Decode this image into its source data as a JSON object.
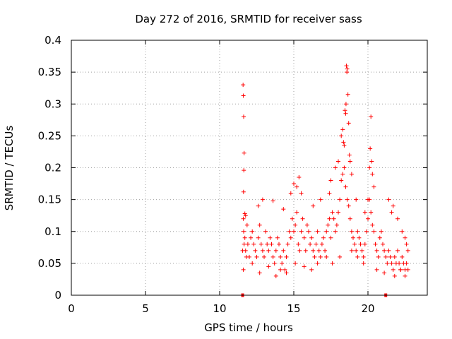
{
  "chart_data": {
    "type": "scatter",
    "title": "Day 272 of 2016, SRMTID for receiver sass",
    "xlabel": "GPS time / hours",
    "ylabel": "SRMTID / TECUs",
    "xlim": [
      0,
      24
    ],
    "ylim": [
      0,
      0.4
    ],
    "xticks": [
      0,
      5,
      10,
      15,
      20
    ],
    "xtick_labels": [
      "0",
      "5",
      "10",
      "15",
      "20"
    ],
    "yticks": [
      0,
      0.05,
      0.1,
      0.15,
      0.2,
      0.25,
      0.3,
      0.35,
      0.4
    ],
    "ytick_labels": [
      "0",
      "0.05",
      "0.1",
      "0.15",
      "0.2",
      "0.25",
      "0.3",
      "0.35",
      "0.4"
    ],
    "grid": true,
    "marker": "+",
    "series": [
      {
        "name": "SRMTID",
        "color": "#ff0000",
        "x": [
          11.55,
          11.6,
          11.62,
          11.65,
          11.7,
          11.75,
          11.8,
          11.85,
          11.9,
          12.0,
          12.1,
          12.2,
          12.3,
          12.4,
          12.5,
          12.6,
          12.7,
          12.8,
          12.9,
          13.0,
          13.1,
          13.2,
          13.3,
          13.4,
          13.5,
          13.6,
          13.7,
          13.8,
          13.9,
          14.0,
          14.1,
          14.2,
          14.3,
          14.4,
          14.5,
          14.6,
          14.7,
          14.8,
          14.9,
          15.0,
          15.1,
          15.2,
          15.3,
          15.4,
          15.5,
          15.6,
          15.7,
          15.8,
          15.9,
          16.0,
          16.1,
          16.2,
          16.3,
          16.4,
          16.5,
          16.6,
          16.7,
          16.8,
          16.9,
          17.0,
          17.1,
          17.2,
          17.3,
          17.4,
          17.5,
          17.6,
          17.7,
          17.8,
          17.9,
          18.0,
          18.1,
          18.2,
          18.3,
          18.4,
          18.5,
          18.6,
          18.7,
          18.8,
          18.9,
          19.0,
          19.1,
          19.2,
          19.3,
          19.4,
          19.5,
          19.6,
          19.7,
          19.8,
          19.9,
          20.0,
          20.1,
          20.2,
          20.3,
          20.4,
          20.5,
          20.6,
          20.7,
          20.8,
          20.9,
          21.0,
          21.1,
          21.2,
          21.3,
          21.4,
          21.5,
          21.6,
          21.7,
          21.8,
          21.9,
          22.0,
          22.1,
          22.2,
          22.3,
          22.4,
          22.5,
          22.6,
          22.7,
          11.58,
          11.6,
          11.62,
          11.65,
          11.63,
          11.61,
          11.7,
          11.75,
          12.6,
          12.9,
          13.6,
          14.3,
          14.8,
          15.0,
          15.2,
          15.35,
          15.5,
          16.3,
          16.8,
          17.4,
          17.5,
          17.8,
          18.0,
          18.2,
          18.3,
          18.35,
          18.4,
          18.45,
          18.5,
          18.52,
          18.55,
          18.58,
          18.6,
          18.65,
          18.7,
          18.75,
          18.8,
          18.9,
          19.2,
          19.8,
          20.0,
          20.1,
          20.15,
          20.2,
          20.25,
          20.3,
          20.4,
          21.4,
          21.6,
          21.7,
          22.0,
          22.3,
          22.5,
          22.6,
          22.7,
          11.6,
          12.2,
          12.7,
          13.3,
          13.8,
          14.1,
          14.5,
          15.1,
          15.7,
          16.2,
          16.6,
          17.2,
          17.6,
          18.1,
          18.9,
          19.3,
          19.7,
          20.6,
          21.1,
          21.8,
          22.2,
          22.5
        ],
        "y": [
          0.07,
          0.12,
          0.1,
          0.08,
          0.09,
          0.07,
          0.06,
          0.11,
          0.08,
          0.06,
          0.09,
          0.1,
          0.08,
          0.07,
          0.06,
          0.09,
          0.11,
          0.08,
          0.07,
          0.06,
          0.1,
          0.08,
          0.07,
          0.09,
          0.08,
          0.06,
          0.05,
          0.07,
          0.09,
          0.08,
          0.06,
          0.05,
          0.07,
          0.04,
          0.06,
          0.08,
          0.1,
          0.09,
          0.12,
          0.1,
          0.11,
          0.13,
          0.08,
          0.07,
          0.1,
          0.12,
          0.09,
          0.07,
          0.11,
          0.1,
          0.08,
          0.09,
          0.07,
          0.06,
          0.08,
          0.1,
          0.07,
          0.06,
          0.08,
          0.09,
          0.07,
          0.1,
          0.11,
          0.12,
          0.09,
          0.13,
          0.12,
          0.1,
          0.11,
          0.13,
          0.15,
          0.18,
          0.19,
          0.2,
          0.17,
          0.15,
          0.14,
          0.12,
          0.1,
          0.09,
          0.08,
          0.07,
          0.1,
          0.09,
          0.08,
          0.07,
          0.06,
          0.08,
          0.1,
          0.12,
          0.15,
          0.13,
          0.11,
          0.1,
          0.08,
          0.07,
          0.06,
          0.09,
          0.1,
          0.08,
          0.07,
          0.06,
          0.05,
          0.07,
          0.06,
          0.05,
          0.04,
          0.06,
          0.05,
          0.07,
          0.05,
          0.04,
          0.06,
          0.05,
          0.04,
          0.05,
          0.04,
          0.33,
          0.313,
          0.28,
          0.223,
          0.196,
          0.162,
          0.128,
          0.125,
          0.14,
          0.15,
          0.148,
          0.135,
          0.16,
          0.175,
          0.17,
          0.185,
          0.16,
          0.14,
          0.15,
          0.16,
          0.18,
          0.2,
          0.21,
          0.25,
          0.26,
          0.24,
          0.235,
          0.29,
          0.285,
          0.3,
          0.36,
          0.35,
          0.355,
          0.315,
          0.27,
          0.22,
          0.21,
          0.19,
          0.15,
          0.13,
          0.15,
          0.2,
          0.23,
          0.28,
          0.21,
          0.19,
          0.17,
          0.15,
          0.13,
          0.14,
          0.12,
          0.1,
          0.09,
          0.08,
          0.07,
          0.04,
          0.05,
          0.035,
          0.045,
          0.03,
          0.04,
          0.035,
          0.05,
          0.045,
          0.04,
          0.05,
          0.06,
          0.05,
          0.06,
          0.07,
          0.06,
          0.05,
          0.04,
          0.035,
          0.03,
          0.04,
          0.03
        ]
      },
      {
        "name": "markers",
        "color": "#ff0000",
        "marker": "square",
        "x": [
          11.55,
          21.2
        ],
        "y": [
          0,
          0
        ]
      }
    ]
  }
}
